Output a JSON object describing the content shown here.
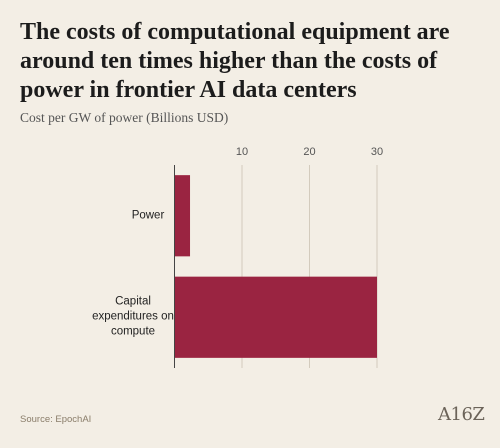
{
  "chart_data": {
    "type": "hbar",
    "title": "The costs of computational equipment are around ten times higher than the costs of power in frontier AI data centers",
    "subtitle": "Cost per GW of power (Billions USD)",
    "categories": [
      "Power",
      "Capital expenditures on compute"
    ],
    "values": [
      2.3,
      30
    ],
    "color": "#9a2441",
    "xlim": [
      0,
      30
    ],
    "xticks": [
      10,
      20,
      30
    ],
    "grid": true,
    "source": "Source: EpochAI",
    "logo": "A16Z"
  }
}
